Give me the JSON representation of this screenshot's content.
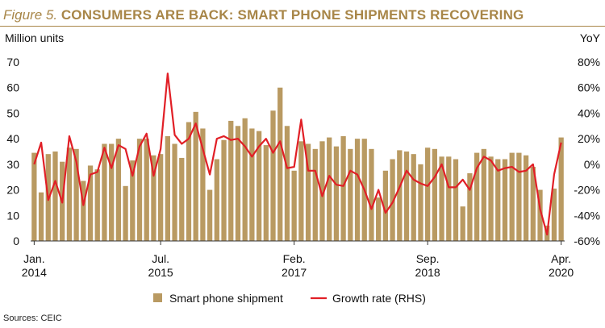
{
  "header": {
    "figure_label": "Figure 5.",
    "title": "CONSUMERS ARE BACK: SMART PHONE SHIPMENTS RECOVERING"
  },
  "source": "Sources: CEIC",
  "colors": {
    "bar": "#b99a62",
    "line": "#e11f26",
    "title": "#a88648"
  },
  "chart_data": {
    "type": "bar",
    "ylabel_left": "Million units",
    "ylabel_right": "YoY",
    "ylim_left": [
      0,
      70
    ],
    "ylim_right": [
      -60,
      80
    ],
    "y_ticks_left": [
      "0",
      "10",
      "20",
      "30",
      "40",
      "50",
      "60",
      "70"
    ],
    "y_ticks_right": [
      "-60%",
      "-40%",
      "-20%",
      "0%",
      "20%",
      "40%",
      "60%",
      "80%"
    ],
    "x_ticks": [
      {
        "index": 0,
        "line1": "Jan.",
        "line2": "2014"
      },
      {
        "index": 18,
        "line1": "Jul.",
        "line2": "2015"
      },
      {
        "index": 37,
        "line1": "Feb.",
        "line2": "2017"
      },
      {
        "index": 56,
        "line1": "Sep.",
        "line2": "2018"
      },
      {
        "index": 75,
        "line1": "Apr.",
        "line2": "2020"
      }
    ],
    "series": [
      {
        "name": "Smart phone shipment",
        "kind": "bar",
        "axis": "left",
        "values": [
          34.5,
          19,
          34,
          35,
          31,
          36.5,
          36,
          23.5,
          29.5,
          28,
          38,
          38,
          40,
          21.5,
          31.5,
          40,
          40,
          33.5,
          34,
          41,
          38,
          32.5,
          46.5,
          50.5,
          44,
          20,
          32,
          39.5,
          47,
          45,
          48,
          44,
          43,
          37.5,
          51,
          60,
          45,
          27.5,
          39,
          38,
          36,
          39,
          40.5,
          37,
          41,
          36,
          40,
          40,
          36,
          17,
          27.5,
          32,
          35.5,
          35,
          34,
          30,
          36.5,
          36,
          33,
          33,
          32,
          13.5,
          26.5,
          34.5,
          36,
          33,
          32,
          32,
          34.5,
          34.5,
          33.5,
          29,
          20,
          6,
          20.5,
          40.5
        ]
      },
      {
        "name": "Growth rate (RHS)",
        "kind": "line",
        "axis": "right",
        "values": [
          0,
          17,
          -28,
          -13,
          -30,
          22,
          2,
          -32,
          -8,
          -6,
          13,
          -3,
          15,
          12,
          -9,
          14,
          24,
          -9,
          12,
          71,
          23,
          16,
          20,
          32,
          12,
          -8,
          20,
          22,
          19,
          20,
          14,
          6,
          14,
          20,
          9,
          18,
          -3,
          -2,
          35,
          -5,
          -5,
          -25,
          -9,
          -16,
          -17,
          -5,
          -8,
          -20,
          -35,
          -20,
          -38,
          -30,
          -18,
          -5,
          -12,
          -15,
          -17,
          -10,
          0,
          -18,
          -18,
          -12,
          -20,
          -3,
          6,
          3,
          -5,
          -3,
          -2,
          -6,
          -5,
          0,
          -35,
          -55,
          -8,
          17
        ]
      }
    ],
    "grid": false,
    "legend_position": "bottom-center"
  }
}
